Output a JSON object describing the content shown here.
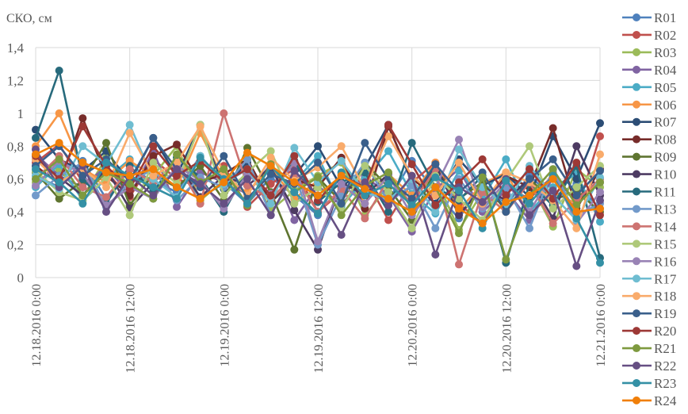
{
  "chart_data": {
    "type": "line",
    "title": "",
    "ylabel": "СКО, см",
    "xlabel": "",
    "ylim": [
      0,
      1.4
    ],
    "yticks": [
      "0",
      "0,2",
      "0,4",
      "0,6",
      "0,8",
      "1",
      "1,2",
      "1,4"
    ],
    "ytick_values": [
      0,
      0.2,
      0.4,
      0.6,
      0.8,
      1.0,
      1.2,
      1.4
    ],
    "xlim_hours": [
      0,
      72
    ],
    "xticks": [
      "12.18.2016 0:00",
      "12.18.2016 12:00",
      "12.19.2016 0:00",
      "12.19.2016 12:00",
      "12.20.2016 0:00",
      "12.20.2016 12:00",
      "12.21.2016 0:00"
    ],
    "xtick_hours": [
      0,
      12,
      24,
      36,
      48,
      60,
      72
    ],
    "grid": true,
    "legend_position": "right",
    "x_hours": [
      0,
      3,
      6,
      9,
      12,
      15,
      18,
      21,
      24,
      27,
      30,
      33,
      36,
      39,
      42,
      45,
      48,
      51,
      54,
      57,
      60,
      63,
      66,
      69,
      72
    ],
    "series": [
      {
        "name": "R01",
        "color": "#4F81BD",
        "values": [
          0.62,
          0.55,
          0.71,
          0.48,
          0.66,
          0.59,
          0.52,
          0.74,
          0.58,
          0.45,
          0.61,
          0.5,
          0.38,
          0.63,
          0.55,
          0.47,
          0.71,
          0.52,
          0.36,
          0.58,
          0.44,
          0.62,
          0.49,
          0.57,
          0.42
        ]
      },
      {
        "name": "R02",
        "color": "#C0504D",
        "values": [
          0.7,
          0.81,
          0.58,
          0.64,
          0.49,
          0.72,
          0.6,
          0.55,
          0.68,
          0.43,
          0.57,
          0.66,
          0.4,
          0.52,
          0.61,
          0.35,
          0.58,
          0.7,
          0.45,
          0.33,
          0.55,
          0.48,
          0.62,
          0.4,
          0.86
        ]
      },
      {
        "name": "R03",
        "color": "#9BBB59",
        "values": [
          0.58,
          0.66,
          0.49,
          0.73,
          0.55,
          0.62,
          0.8,
          0.47,
          0.59,
          0.68,
          0.41,
          0.53,
          0.62,
          0.7,
          0.38,
          0.56,
          0.49,
          0.61,
          0.29,
          0.52,
          0.4,
          0.58,
          0.31,
          0.66,
          0.55
        ]
      },
      {
        "name": "R04",
        "color": "#8064A2",
        "values": [
          0.75,
          0.62,
          0.55,
          0.68,
          0.5,
          0.77,
          0.43,
          0.64,
          0.58,
          0.51,
          0.69,
          0.35,
          0.56,
          0.44,
          0.62,
          0.5,
          0.28,
          0.54,
          0.66,
          0.4,
          0.53,
          0.35,
          0.61,
          0.47,
          0.58
        ]
      },
      {
        "name": "R05",
        "color": "#4BACC6",
        "values": [
          0.55,
          0.69,
          0.47,
          0.6,
          0.72,
          0.53,
          0.66,
          0.49,
          0.57,
          0.7,
          0.46,
          0.58,
          0.74,
          0.43,
          0.6,
          0.77,
          0.51,
          0.39,
          0.65,
          0.48,
          0.72,
          0.4,
          0.55,
          0.63,
          0.34
        ]
      },
      {
        "name": "R06",
        "color": "#F79646",
        "values": [
          0.8,
          1.0,
          0.66,
          0.58,
          0.71,
          0.62,
          0.55,
          0.88,
          0.6,
          0.52,
          0.67,
          0.48,
          0.59,
          0.71,
          0.45,
          0.63,
          0.5,
          0.7,
          0.41,
          0.57,
          0.64,
          0.38,
          0.52,
          0.45,
          0.6
        ]
      },
      {
        "name": "R07",
        "color": "#2C4D75",
        "values": [
          0.9,
          0.72,
          0.65,
          0.77,
          0.58,
          0.85,
          0.62,
          0.93,
          0.54,
          0.7,
          0.48,
          0.62,
          0.8,
          0.55,
          0.67,
          0.93,
          0.58,
          0.45,
          0.72,
          0.56,
          0.63,
          0.49,
          0.86,
          0.6,
          0.94
        ]
      },
      {
        "name": "R08",
        "color": "#772C2A",
        "values": [
          0.68,
          0.57,
          0.97,
          0.62,
          0.5,
          0.74,
          0.81,
          0.58,
          0.63,
          0.72,
          0.46,
          0.6,
          0.55,
          0.73,
          0.42,
          0.92,
          0.6,
          0.5,
          0.7,
          0.45,
          0.62,
          0.55,
          0.91,
          0.42,
          0.66
        ]
      },
      {
        "name": "R09",
        "color": "#5F7530",
        "values": [
          0.64,
          0.48,
          0.59,
          0.82,
          0.44,
          0.63,
          0.55,
          0.68,
          0.47,
          0.79,
          0.52,
          0.17,
          0.61,
          0.46,
          0.7,
          0.55,
          0.35,
          0.66,
          0.48,
          0.58,
          0.41,
          0.6,
          0.47,
          0.53,
          0.4
        ]
      },
      {
        "name": "R10",
        "color": "#4D3B62",
        "values": [
          0.72,
          0.61,
          0.5,
          0.66,
          0.42,
          0.58,
          0.7,
          0.49,
          0.62,
          0.56,
          0.67,
          0.41,
          0.17,
          0.58,
          0.5,
          0.63,
          0.44,
          0.69,
          0.38,
          0.55,
          0.47,
          0.6,
          0.36,
          0.8,
          0.5
        ]
      },
      {
        "name": "R11",
        "color": "#276A7C",
        "values": [
          0.85,
          1.26,
          0.6,
          0.45,
          0.68,
          0.52,
          0.73,
          0.61,
          0.4,
          0.66,
          0.5,
          0.71,
          0.46,
          0.58,
          0.64,
          0.4,
          0.82,
          0.55,
          0.47,
          0.62,
          0.09,
          0.57,
          0.44,
          0.68,
          0.12
        ]
      },
      {
        "name": "R13",
        "color": "#729ACA",
        "values": [
          0.5,
          0.62,
          0.7,
          0.43,
          0.58,
          0.66,
          0.47,
          0.61,
          0.55,
          0.72,
          0.38,
          0.64,
          0.2,
          0.5,
          0.7,
          0.46,
          0.56,
          0.3,
          0.6,
          0.42,
          0.55,
          0.3,
          0.66,
          0.38,
          0.45
        ]
      },
      {
        "name": "R14",
        "color": "#CD7371",
        "values": [
          0.6,
          0.74,
          0.55,
          0.49,
          0.66,
          0.58,
          0.7,
          0.45,
          1.0,
          0.56,
          0.48,
          0.62,
          0.4,
          0.54,
          0.36,
          0.6,
          0.45,
          0.66,
          0.08,
          0.52,
          0.4,
          0.58,
          0.33,
          0.47,
          0.6
        ]
      },
      {
        "name": "R15",
        "color": "#AFC97A",
        "values": [
          0.65,
          0.52,
          0.47,
          0.61,
          0.38,
          0.7,
          0.57,
          0.93,
          0.5,
          0.64,
          0.77,
          0.45,
          0.55,
          0.41,
          0.68,
          0.52,
          0.3,
          0.62,
          0.48,
          0.35,
          0.59,
          0.8,
          0.42,
          0.55,
          0.68
        ]
      },
      {
        "name": "R16",
        "color": "#9983B5",
        "values": [
          0.56,
          0.71,
          0.63,
          0.44,
          0.55,
          0.48,
          0.68,
          0.59,
          0.42,
          0.63,
          0.51,
          0.7,
          0.22,
          0.57,
          0.45,
          0.62,
          0.38,
          0.55,
          0.84,
          0.43,
          0.58,
          0.4,
          0.64,
          0.33,
          0.52
        ]
      },
      {
        "name": "R17",
        "color": "#6FBDD1",
        "values": [
          0.62,
          0.54,
          0.8,
          0.69,
          0.93,
          0.6,
          0.49,
          0.74,
          0.57,
          0.66,
          0.45,
          0.79,
          0.58,
          0.71,
          0.52,
          0.47,
          0.6,
          0.4,
          0.78,
          0.55,
          0.44,
          0.68,
          0.5,
          0.35,
          0.61
        ]
      },
      {
        "name": "R18",
        "color": "#F9AB6B",
        "values": [
          0.72,
          0.58,
          0.66,
          0.55,
          0.88,
          0.62,
          0.7,
          0.92,
          0.64,
          0.5,
          0.73,
          0.59,
          0.67,
          0.8,
          0.54,
          0.86,
          0.62,
          0.5,
          0.7,
          0.45,
          0.64,
          0.58,
          0.47,
          0.3,
          0.75
        ]
      },
      {
        "name": "R19",
        "color": "#3A5F8B",
        "values": [
          0.68,
          0.8,
          0.62,
          0.72,
          0.59,
          0.85,
          0.66,
          0.55,
          0.74,
          0.48,
          0.63,
          0.57,
          0.7,
          0.45,
          0.82,
          0.6,
          0.48,
          0.69,
          0.52,
          0.64,
          0.4,
          0.6,
          0.72,
          0.5,
          0.65
        ]
      },
      {
        "name": "R20",
        "color": "#9D3936",
        "values": [
          0.74,
          0.6,
          0.92,
          0.68,
          0.54,
          0.8,
          0.62,
          0.71,
          0.58,
          0.66,
          0.5,
          0.74,
          0.47,
          0.62,
          0.55,
          0.93,
          0.69,
          0.44,
          0.58,
          0.72,
          0.5,
          0.66,
          0.48,
          0.7,
          0.38
        ]
      },
      {
        "name": "R21",
        "color": "#7E9A3F",
        "values": [
          0.6,
          0.72,
          0.5,
          0.64,
          0.57,
          0.48,
          0.75,
          0.58,
          0.66,
          0.44,
          0.69,
          0.52,
          0.61,
          0.38,
          0.56,
          0.64,
          0.42,
          0.55,
          0.27,
          0.61,
          0.11,
          0.5,
          0.66,
          0.44,
          0.58
        ]
      },
      {
        "name": "R22",
        "color": "#664F83",
        "values": [
          0.78,
          0.55,
          0.68,
          0.4,
          0.62,
          0.5,
          0.66,
          0.57,
          0.45,
          0.6,
          0.38,
          0.65,
          0.5,
          0.26,
          0.58,
          0.44,
          0.62,
          0.14,
          0.55,
          0.46,
          0.6,
          0.38,
          0.53,
          0.07,
          0.47
        ]
      },
      {
        "name": "R23",
        "color": "#3490A5",
        "values": [
          0.66,
          0.58,
          0.45,
          0.7,
          0.62,
          0.55,
          0.48,
          0.73,
          0.6,
          0.45,
          0.68,
          0.52,
          0.39,
          0.64,
          0.5,
          0.57,
          0.44,
          0.61,
          0.53,
          0.3,
          0.59,
          0.45,
          0.62,
          0.36,
          0.09
        ]
      },
      {
        "name": "R24",
        "color": "#F07F09",
        "values": [
          0.75,
          0.82,
          0.7,
          0.64,
          0.62,
          0.66,
          0.55,
          0.48,
          0.58,
          0.76,
          0.68,
          0.58,
          0.5,
          0.62,
          0.54,
          0.48,
          0.4,
          0.55,
          0.42,
          0.33,
          0.46,
          0.5,
          0.6,
          0.4,
          0.42
        ]
      }
    ]
  }
}
